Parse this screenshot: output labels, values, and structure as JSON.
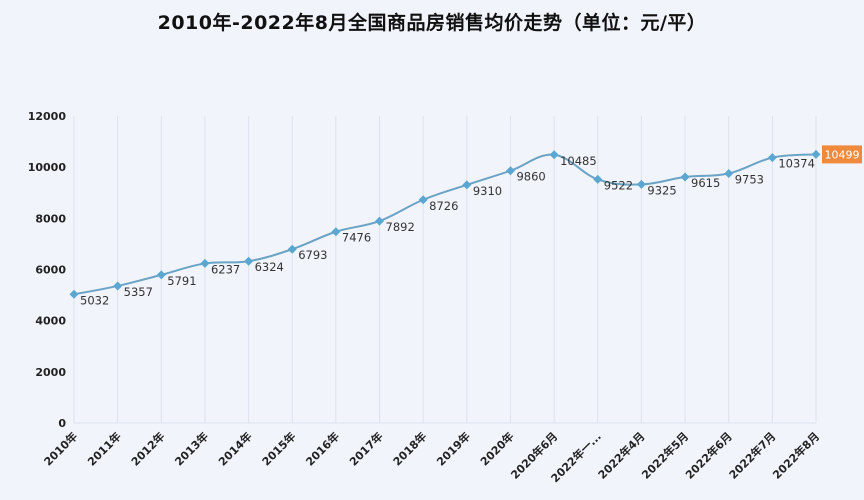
{
  "title": "2010年-2022年8月全国商品房销售均价走势（单位：元/平）",
  "colors": {
    "background": "#f1f4fb",
    "line": "#6aa3c4",
    "marker": "#5aa7d2",
    "grid": "#dde2ec",
    "highlight": "#ef8a3c"
  },
  "chart_data": {
    "type": "line",
    "title": "2010年-2022年8月全国商品房销售均价走势（单位：元/平）",
    "xlabel": "",
    "ylabel": "",
    "ylim": [
      0,
      12000
    ],
    "yticks": [
      0,
      2000,
      4000,
      6000,
      8000,
      10000,
      12000
    ],
    "grid": {
      "vertical": true,
      "horizontal": false
    },
    "categories": [
      "2010年",
      "2011年",
      "2012年",
      "2013年",
      "2014年",
      "2015年",
      "2016年",
      "2017年",
      "2018年",
      "2019年",
      "2020年",
      "2020年6月",
      "2022年一...",
      "2022年4月",
      "2022年5月",
      "2022年6月",
      "2022年7月",
      "2022年8月"
    ],
    "series": [
      {
        "name": "销售均价",
        "values": [
          5032,
          5357,
          5791,
          6237,
          6324,
          6793,
          7476,
          7892,
          8726,
          9310,
          9860,
          10485,
          9522,
          9325,
          9615,
          9753,
          10374,
          10499
        ]
      }
    ],
    "highlight": {
      "index": 17,
      "label": "10499"
    }
  }
}
